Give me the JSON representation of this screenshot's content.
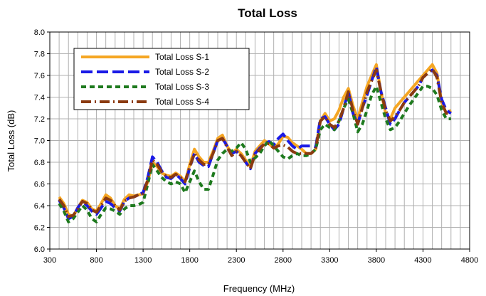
{
  "chart_data": {
    "type": "line",
    "title": "Total Loss",
    "xlabel": "Frequency (MHz)",
    "ylabel": "Total Loss (dB)",
    "xlim": [
      300,
      4800
    ],
    "ylim": [
      6.0,
      8.0
    ],
    "xticks": [
      300,
      800,
      1300,
      1800,
      2300,
      2800,
      3300,
      3800,
      4300,
      4800
    ],
    "yticks": [
      6.0,
      6.2,
      6.4,
      6.6,
      6.8,
      7.0,
      7.2,
      7.4,
      7.6,
      7.8,
      8.0
    ],
    "xtick_step_minor": 100,
    "grid": true,
    "legend_position": "top-left",
    "series": [
      {
        "name": "Total Loss S-1",
        "color": "#F5A623",
        "dash": "solid",
        "x": [
          400,
          450,
          500,
          550,
          600,
          650,
          700,
          750,
          800,
          850,
          900,
          950,
          1000,
          1050,
          1100,
          1150,
          1200,
          1250,
          1300,
          1350,
          1400,
          1450,
          1500,
          1550,
          1600,
          1650,
          1700,
          1750,
          1800,
          1850,
          1900,
          1950,
          2000,
          2050,
          2100,
          2150,
          2200,
          2250,
          2300,
          2350,
          2400,
          2450,
          2500,
          2550,
          2600,
          2650,
          2700,
          2750,
          2800,
          2850,
          2900,
          2950,
          3000,
          3050,
          3100,
          3150,
          3200,
          3250,
          3300,
          3350,
          3400,
          3450,
          3500,
          3550,
          3600,
          3650,
          3700,
          3750,
          3800,
          3850,
          3900,
          3950,
          4000,
          4050,
          4100,
          4150,
          4200,
          4250,
          4300,
          4350,
          4400,
          4450,
          4500,
          4550,
          4600
        ],
        "values": [
          6.48,
          6.42,
          6.32,
          6.3,
          6.38,
          6.45,
          6.43,
          6.37,
          6.35,
          6.42,
          6.5,
          6.47,
          6.4,
          6.37,
          6.46,
          6.5,
          6.49,
          6.5,
          6.51,
          6.62,
          6.8,
          6.76,
          6.7,
          6.68,
          6.67,
          6.7,
          6.67,
          6.62,
          6.78,
          6.92,
          6.85,
          6.8,
          6.8,
          6.9,
          7.02,
          7.05,
          6.95,
          6.88,
          6.92,
          6.88,
          6.82,
          6.76,
          6.9,
          6.95,
          7.0,
          6.97,
          6.93,
          6.97,
          7.04,
          7.03,
          6.98,
          6.95,
          6.92,
          6.88,
          6.88,
          6.92,
          7.18,
          7.25,
          7.18,
          7.2,
          7.28,
          7.4,
          7.48,
          7.32,
          7.2,
          7.35,
          7.5,
          7.6,
          7.7,
          7.45,
          7.25,
          7.2,
          7.3,
          7.35,
          7.4,
          7.45,
          7.5,
          7.55,
          7.6,
          7.65,
          7.7,
          7.62,
          7.35,
          7.25,
          7.28
        ]
      },
      {
        "name": "Total Loss S-2",
        "color": "#1A1AE6",
        "dash": "long-dash",
        "x": [
          400,
          450,
          500,
          550,
          600,
          650,
          700,
          750,
          800,
          850,
          900,
          950,
          1000,
          1050,
          1100,
          1150,
          1200,
          1250,
          1300,
          1350,
          1400,
          1450,
          1500,
          1550,
          1600,
          1650,
          1700,
          1750,
          1800,
          1850,
          1900,
          1950,
          2000,
          2050,
          2100,
          2150,
          2200,
          2250,
          2300,
          2350,
          2400,
          2450,
          2500,
          2550,
          2600,
          2650,
          2700,
          2750,
          2800,
          2850,
          2900,
          2950,
          3000,
          3050,
          3100,
          3150,
          3200,
          3250,
          3300,
          3350,
          3400,
          3450,
          3500,
          3550,
          3600,
          3650,
          3700,
          3750,
          3800,
          3850,
          3900,
          3950,
          4000,
          4050,
          4100,
          4150,
          4200,
          4250,
          4300,
          4350,
          4400,
          4450,
          4500,
          4550,
          4600
        ],
        "values": [
          6.45,
          6.38,
          6.28,
          6.3,
          6.38,
          6.44,
          6.4,
          6.35,
          6.32,
          6.38,
          6.44,
          6.42,
          6.38,
          6.35,
          6.44,
          6.47,
          6.48,
          6.5,
          6.52,
          6.66,
          6.85,
          6.8,
          6.72,
          6.66,
          6.65,
          6.69,
          6.65,
          6.6,
          6.75,
          6.88,
          6.8,
          6.77,
          6.76,
          6.88,
          7.0,
          7.02,
          6.95,
          6.88,
          6.9,
          6.86,
          6.8,
          6.74,
          6.88,
          6.93,
          6.97,
          6.99,
          6.96,
          7.02,
          7.06,
          7.0,
          6.95,
          6.92,
          6.95,
          6.95,
          6.95,
          6.94,
          7.2,
          7.22,
          7.15,
          7.1,
          7.15,
          7.3,
          7.45,
          7.25,
          7.15,
          7.3,
          7.42,
          7.55,
          7.68,
          7.45,
          7.3,
          7.15,
          7.2,
          7.28,
          7.35,
          7.4,
          7.45,
          7.5,
          7.58,
          7.62,
          7.65,
          7.6,
          7.38,
          7.28,
          7.25
        ]
      },
      {
        "name": "Total Loss S-3",
        "color": "#1E7A1E",
        "dash": "short-dash",
        "x": [
          400,
          450,
          500,
          550,
          600,
          650,
          700,
          750,
          800,
          850,
          900,
          950,
          1000,
          1050,
          1100,
          1150,
          1200,
          1250,
          1300,
          1350,
          1400,
          1450,
          1500,
          1550,
          1600,
          1650,
          1700,
          1750,
          1800,
          1850,
          1900,
          1950,
          2000,
          2050,
          2100,
          2150,
          2200,
          2250,
          2300,
          2350,
          2400,
          2450,
          2500,
          2550,
          2600,
          2650,
          2700,
          2750,
          2800,
          2850,
          2900,
          2950,
          3000,
          3050,
          3100,
          3150,
          3200,
          3250,
          3300,
          3350,
          3400,
          3450,
          3500,
          3550,
          3600,
          3650,
          3700,
          3750,
          3800,
          3850,
          3900,
          3950,
          4000,
          4050,
          4100,
          4150,
          4200,
          4250,
          4300,
          4350,
          4400,
          4450,
          4500,
          4550,
          4600
        ],
        "values": [
          6.42,
          6.35,
          6.25,
          6.28,
          6.34,
          6.4,
          6.36,
          6.28,
          6.25,
          6.32,
          6.38,
          6.37,
          6.35,
          6.32,
          6.37,
          6.4,
          6.4,
          6.41,
          6.43,
          6.6,
          6.78,
          6.72,
          6.66,
          6.62,
          6.6,
          6.62,
          6.6,
          6.52,
          6.62,
          6.72,
          6.62,
          6.55,
          6.55,
          6.68,
          6.82,
          6.88,
          6.92,
          6.9,
          6.93,
          6.98,
          6.92,
          6.8,
          6.84,
          6.88,
          6.95,
          7.0,
          6.95,
          6.9,
          6.85,
          6.83,
          6.86,
          6.88,
          6.86,
          6.86,
          6.88,
          6.92,
          7.1,
          7.15,
          7.12,
          7.1,
          7.18,
          7.3,
          7.38,
          7.25,
          7.08,
          7.15,
          7.28,
          7.42,
          7.5,
          7.35,
          7.2,
          7.1,
          7.12,
          7.18,
          7.25,
          7.32,
          7.38,
          7.44,
          7.5,
          7.5,
          7.48,
          7.42,
          7.28,
          7.2,
          7.2
        ]
      },
      {
        "name": "Total Loss S-4",
        "color": "#8B3A10",
        "dash": "long-dash-dot",
        "x": [
          400,
          450,
          500,
          550,
          600,
          650,
          700,
          750,
          800,
          850,
          900,
          950,
          1000,
          1050,
          1100,
          1150,
          1200,
          1250,
          1300,
          1350,
          1400,
          1450,
          1500,
          1550,
          1600,
          1650,
          1700,
          1750,
          1800,
          1850,
          1900,
          1950,
          2000,
          2050,
          2100,
          2150,
          2200,
          2250,
          2300,
          2350,
          2400,
          2450,
          2500,
          2550,
          2600,
          2650,
          2700,
          2750,
          2800,
          2850,
          2900,
          2950,
          3000,
          3050,
          3100,
          3150,
          3200,
          3250,
          3300,
          3350,
          3400,
          3450,
          3500,
          3550,
          3600,
          3650,
          3700,
          3750,
          3800,
          3850,
          3900,
          3950,
          4000,
          4050,
          4100,
          4150,
          4200,
          4250,
          4300,
          4350,
          4400,
          4450,
          4500,
          4550,
          4600
        ],
        "values": [
          6.46,
          6.4,
          6.3,
          6.31,
          6.37,
          6.44,
          6.42,
          6.36,
          6.34,
          6.4,
          6.47,
          6.45,
          6.4,
          6.36,
          6.44,
          6.47,
          6.48,
          6.5,
          6.51,
          6.64,
          6.82,
          6.78,
          6.71,
          6.67,
          6.66,
          6.69,
          6.66,
          6.62,
          6.76,
          6.88,
          6.82,
          6.78,
          6.78,
          6.88,
          7.0,
          7.02,
          6.94,
          6.86,
          6.9,
          6.86,
          6.8,
          6.74,
          6.87,
          6.92,
          6.97,
          6.97,
          6.93,
          6.95,
          6.96,
          6.94,
          6.9,
          6.88,
          6.88,
          6.88,
          6.88,
          6.92,
          7.18,
          7.22,
          7.15,
          7.12,
          7.18,
          7.3,
          7.45,
          7.28,
          7.15,
          7.3,
          7.45,
          7.55,
          7.65,
          7.45,
          7.28,
          7.18,
          7.22,
          7.28,
          7.35,
          7.4,
          7.45,
          7.5,
          7.58,
          7.62,
          7.66,
          7.58,
          7.35,
          7.25,
          7.25
        ]
      }
    ]
  }
}
